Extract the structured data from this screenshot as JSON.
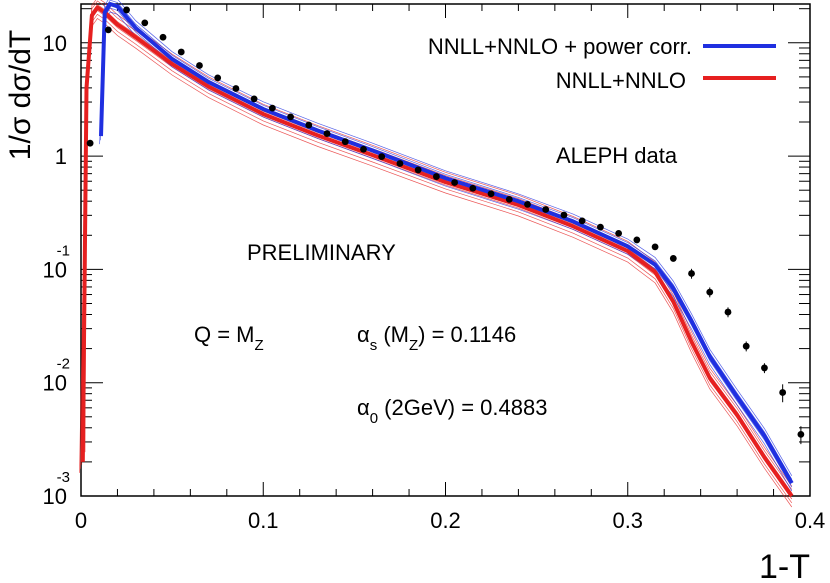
{
  "chart_data": {
    "type": "line",
    "title": "",
    "xlabel": "1-T",
    "ylabel": "1/σ dσ/dT",
    "log_y": true,
    "xlim": [
      0,
      0.4
    ],
    "ylim": [
      0.001,
      22
    ],
    "x_ticks": [
      {
        "value": 0,
        "label": "0"
      },
      {
        "value": 0.1,
        "label": "0.1"
      },
      {
        "value": 0.2,
        "label": "0.2"
      },
      {
        "value": 0.3,
        "label": "0.3"
      },
      {
        "value": 0.4,
        "label": "0.4"
      }
    ],
    "y_ticks": [
      {
        "value": 10,
        "base": "10",
        "exp": ""
      },
      {
        "value": 1,
        "base": "1",
        "exp": ""
      },
      {
        "value": 0.1,
        "base": "10",
        "exp": "-1"
      },
      {
        "value": 0.01,
        "base": "10",
        "exp": "-2"
      },
      {
        "value": 0.001,
        "base": "10",
        "exp": "-3"
      }
    ],
    "legend": {
      "position": "top-right",
      "entries": [
        {
          "label": "NNLL+NNLO + power corr.",
          "color": "#1f2fe0"
        },
        {
          "label": "NNLL+NNLO",
          "color": "#e62020"
        }
      ]
    },
    "annotations": {
      "data_label": "ALEPH data",
      "preliminary": "PRELIMINARY",
      "q_main": "Q = M",
      "q_sub": "Z",
      "alpha_s_sym": "α",
      "alpha_s_sub": "s",
      "alpha_s_rest": " (M",
      "alpha_s_rest_sub": "Z",
      "alpha_s_value": ") = 0.1146",
      "alpha_0_sym": "α",
      "alpha_0_sub": "0",
      "alpha_0_rest": " (2GeV) = 0.4883"
    },
    "series": [
      {
        "name": "NNLL+NNLO + power corr.",
        "color": "#1f2fe0",
        "x": [
          0.011,
          0.013,
          0.016,
          0.02,
          0.03,
          0.05,
          0.07,
          0.1,
          0.13,
          0.16,
          0.2,
          0.24,
          0.27,
          0.3,
          0.315,
          0.325,
          0.335,
          0.345,
          0.36,
          0.375,
          0.39
        ],
        "y": [
          1.5,
          18.5,
          22,
          21,
          13.5,
          7.2,
          4.5,
          2.6,
          1.68,
          1.12,
          0.64,
          0.4,
          0.265,
          0.16,
          0.11,
          0.068,
          0.035,
          0.017,
          0.0075,
          0.0034,
          0.0013
        ]
      },
      {
        "name": "NNLL+NNLO",
        "color": "#e62020",
        "x": [
          0.001,
          0.003,
          0.006,
          0.009,
          0.013,
          0.02,
          0.03,
          0.05,
          0.07,
          0.1,
          0.13,
          0.16,
          0.2,
          0.24,
          0.27,
          0.3,
          0.315,
          0.325,
          0.335,
          0.345,
          0.36,
          0.375,
          0.39
        ],
        "y": [
          0.002,
          4,
          17.5,
          20.5,
          18.5,
          14.5,
          11.2,
          6.5,
          4.1,
          2.35,
          1.52,
          1.02,
          0.59,
          0.37,
          0.24,
          0.145,
          0.095,
          0.052,
          0.023,
          0.011,
          0.0052,
          0.0022,
          0.001
        ]
      },
      {
        "name": "ALEPH data",
        "color": "#000000",
        "x": [
          0.005,
          0.015,
          0.025,
          0.035,
          0.045,
          0.055,
          0.065,
          0.075,
          0.085,
          0.095,
          0.105,
          0.115,
          0.125,
          0.135,
          0.145,
          0.155,
          0.165,
          0.175,
          0.185,
          0.195,
          0.205,
          0.215,
          0.225,
          0.235,
          0.245,
          0.255,
          0.265,
          0.275,
          0.285,
          0.295,
          0.305,
          0.315,
          0.325,
          0.335,
          0.345,
          0.355,
          0.365,
          0.375,
          0.385,
          0.395
        ],
        "y": [
          1.3,
          13,
          19.5,
          15,
          11.2,
          8.3,
          6.3,
          4.9,
          3.95,
          3.2,
          2.65,
          2.22,
          1.88,
          1.58,
          1.34,
          1.15,
          0.99,
          0.86,
          0.755,
          0.66,
          0.585,
          0.52,
          0.465,
          0.415,
          0.375,
          0.338,
          0.302,
          0.268,
          0.236,
          0.208,
          0.182,
          0.158,
          0.125,
          0.092,
          0.063,
          0.042,
          0.021,
          0.0135,
          0.0082,
          0.0035
        ]
      }
    ]
  }
}
